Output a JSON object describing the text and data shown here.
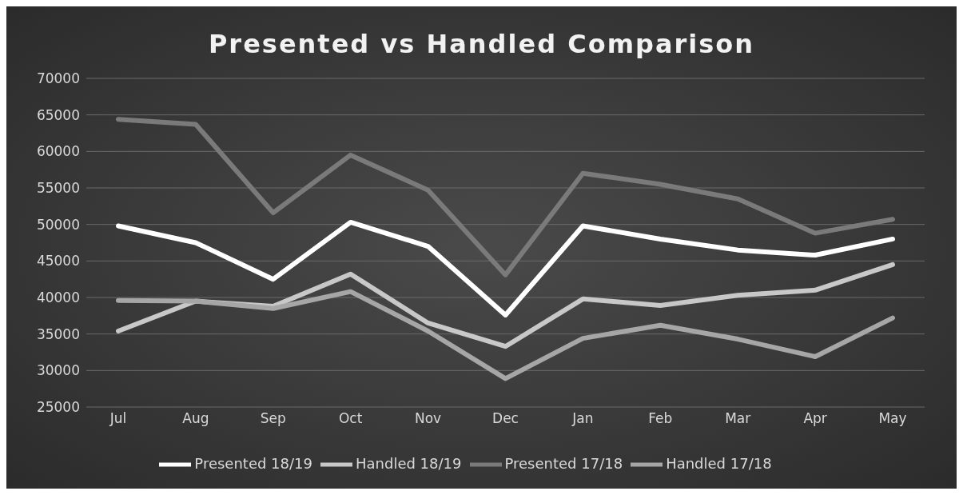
{
  "chart_data": {
    "type": "line",
    "title": "Presented vs Handled Comparison",
    "categories": [
      "Jul",
      "Aug",
      "Sep",
      "Oct",
      "Nov",
      "Dec",
      "Jan",
      "Feb",
      "Mar",
      "Apr",
      "May"
    ],
    "series": [
      {
        "name": "Presented 18/19",
        "color": "#ffffff",
        "values": [
          49800,
          47500,
          42500,
          50300,
          47000,
          37600,
          49800,
          48000,
          46500,
          45800,
          48000
        ]
      },
      {
        "name": "Handled 18/19",
        "color": "#c8c8c8",
        "values": [
          35400,
          39500,
          38800,
          43200,
          36500,
          33300,
          39800,
          38900,
          40300,
          41000,
          44500
        ]
      },
      {
        "name": "Presented 17/18",
        "color": "#7a7a7a",
        "values": [
          64400,
          63700,
          51600,
          59500,
          54700,
          43100,
          57000,
          55500,
          53500,
          48800,
          50700
        ]
      },
      {
        "name": "Handled 17/18",
        "color": "#a6a6a6",
        "values": [
          39600,
          39500,
          38500,
          40800,
          35400,
          28900,
          34400,
          36200,
          34300,
          31900,
          37200
        ]
      }
    ],
    "ylim": [
      25000,
      70000
    ],
    "yticks": [
      25000,
      30000,
      35000,
      40000,
      45000,
      50000,
      55000,
      60000,
      65000,
      70000
    ],
    "grid": "y",
    "legend": "bottom",
    "marker": "none",
    "line_style": "solid"
  }
}
